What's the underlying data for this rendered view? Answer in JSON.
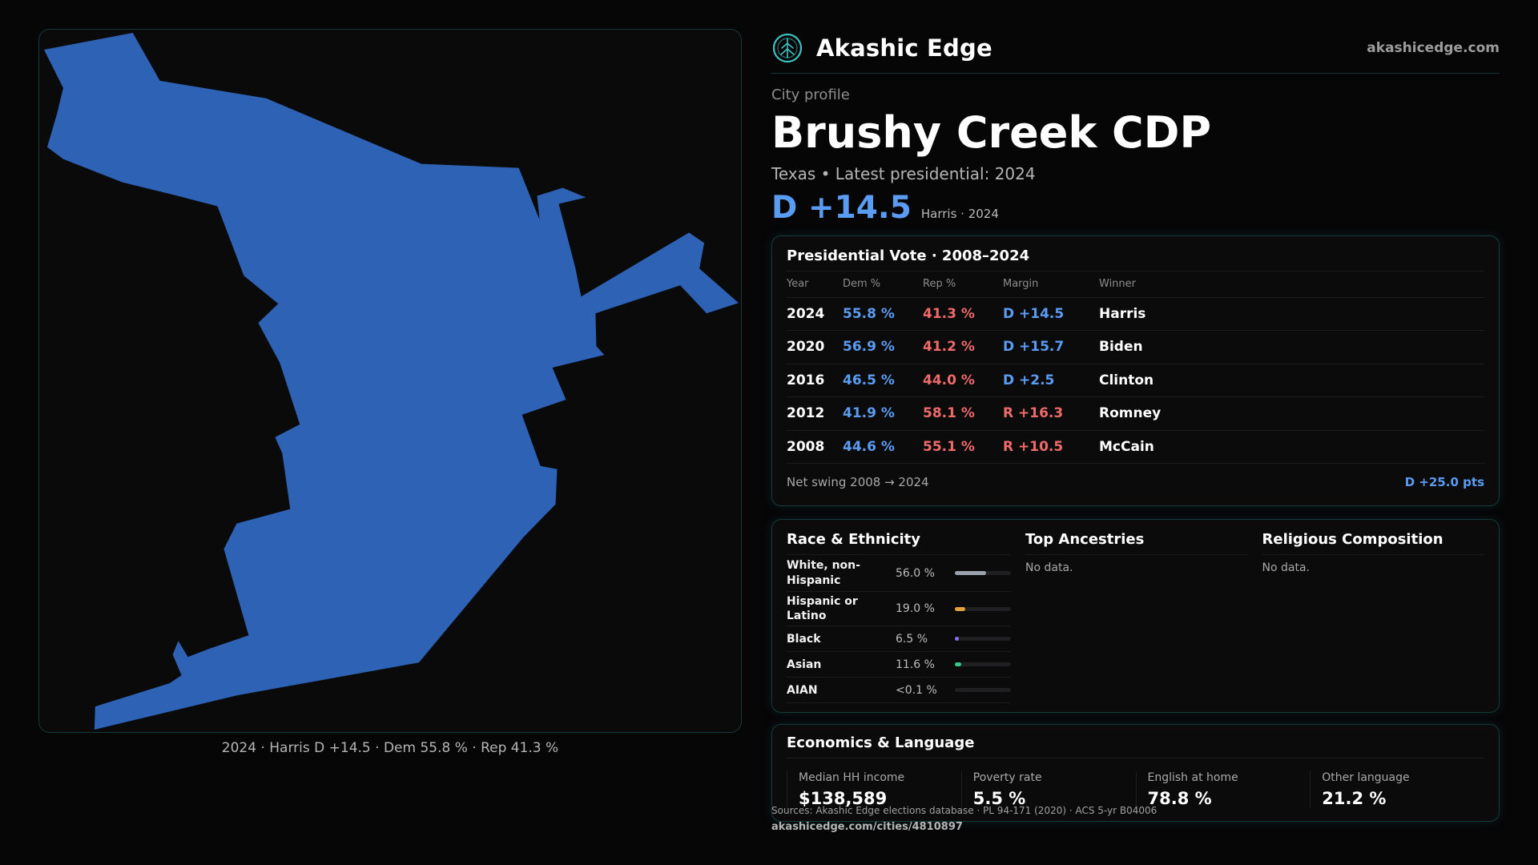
{
  "brand": {
    "name": "Akashic Edge",
    "url": "akashicedge.com",
    "logo_icon": "tree-circle-icon"
  },
  "profile": {
    "eyebrow": "City profile",
    "city": "Brushy Creek CDP",
    "subtitle": "Texas • Latest presidential: 2024",
    "headline_margin": "D +14.5",
    "headline_note": "Harris · 2024"
  },
  "map": {
    "shape_color": "#2d62b5",
    "caption": "2024 · Harris D +14.5 · Dem 55.8 % · Rep 41.3 %"
  },
  "vote": {
    "title": "Presidential Vote · 2008–2024",
    "headers": [
      "Year",
      "Dem %",
      "Rep %",
      "Margin",
      "Winner"
    ],
    "rows": [
      {
        "year": "2024",
        "dem": "55.8 %",
        "rep": "41.3 %",
        "margin": "D +14.5",
        "party": "D",
        "winner": "Harris"
      },
      {
        "year": "2020",
        "dem": "56.9 %",
        "rep": "41.2 %",
        "margin": "D +15.7",
        "party": "D",
        "winner": "Biden"
      },
      {
        "year": "2016",
        "dem": "46.5 %",
        "rep": "44.0 %",
        "margin": "D +2.5",
        "party": "D",
        "winner": "Clinton"
      },
      {
        "year": "2012",
        "dem": "41.9 %",
        "rep": "58.1 %",
        "margin": "R +16.3",
        "party": "R",
        "winner": "Romney"
      },
      {
        "year": "2008",
        "dem": "44.6 %",
        "rep": "55.1 %",
        "margin": "R +10.5",
        "party": "R",
        "winner": "McCain"
      }
    ],
    "swing_label": "Net swing 2008 → 2024",
    "swing_value": "D +25.0 pts"
  },
  "race": {
    "title": "Race & Ethnicity",
    "rows": [
      {
        "label": "White, non-Hispanic",
        "pct": "56.0 %",
        "share": 0.56,
        "color": "#9aa3ad"
      },
      {
        "label": "Hispanic or Latino",
        "pct": "19.0 %",
        "share": 0.19,
        "color": "#e0a23a"
      },
      {
        "label": "Black",
        "pct": "6.5 %",
        "share": 0.065,
        "color": "#8b6cf2"
      },
      {
        "label": "Asian",
        "pct": "11.6 %",
        "share": 0.116,
        "color": "#34c98a"
      },
      {
        "label": "AIAN",
        "pct": "<0.1 %",
        "share": 0.0,
        "color": "#6a6a6a"
      }
    ]
  },
  "ancestry": {
    "title": "Top Ancestries",
    "empty": "No data."
  },
  "religion": {
    "title": "Religious Composition",
    "empty": "No data."
  },
  "economics": {
    "title": "Economics & Language",
    "stats": [
      {
        "label": "Median HH income",
        "value": "$138,589"
      },
      {
        "label": "Poverty rate",
        "value": "5.5 %"
      },
      {
        "label": "English at home",
        "value": "78.8 %"
      },
      {
        "label": "Other language",
        "value": "21.2 %"
      }
    ]
  },
  "footer": {
    "sources": "Sources: Akashic Edge elections database · PL 94-171 (2020) · ACS 5-yr B04006",
    "link": "akashicedge.com/cities/4810897"
  },
  "colors": {
    "dem": "#5b9cf3",
    "rep": "#ef6a6a",
    "accent_border": "#17393b"
  }
}
